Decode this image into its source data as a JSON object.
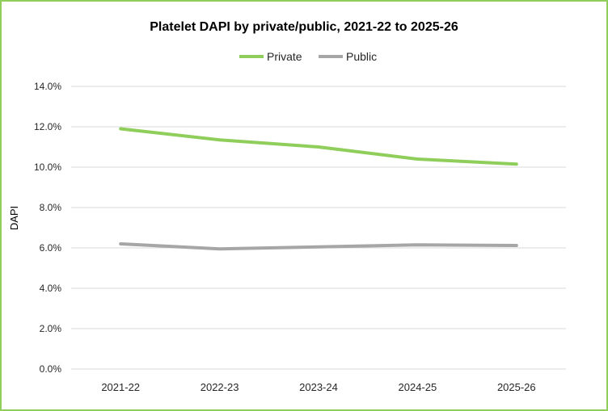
{
  "chart_data": {
    "type": "line",
    "title": "Platelet DAPI by private/public, 2021-22 to 2025-26",
    "xlabel": "",
    "ylabel": "DAPI",
    "categories": [
      "2021-22",
      "2022-23",
      "2023-24",
      "2024-25",
      "2025-26"
    ],
    "ylim": [
      0,
      14
    ],
    "yticks": [
      "0.0%",
      "2.0%",
      "4.0%",
      "6.0%",
      "8.0%",
      "10.0%",
      "12.0%",
      "14.0%"
    ],
    "ytick_values": [
      0,
      2,
      4,
      6,
      8,
      10,
      12,
      14
    ],
    "grid": true,
    "legend_position": "top",
    "series": [
      {
        "name": "Private",
        "color": "#8fce5b",
        "values": [
          11.9,
          11.35,
          11.0,
          10.4,
          10.15
        ]
      },
      {
        "name": "Public",
        "color": "#a6a6a6",
        "values": [
          6.2,
          5.95,
          6.05,
          6.15,
          6.12
        ]
      }
    ]
  }
}
